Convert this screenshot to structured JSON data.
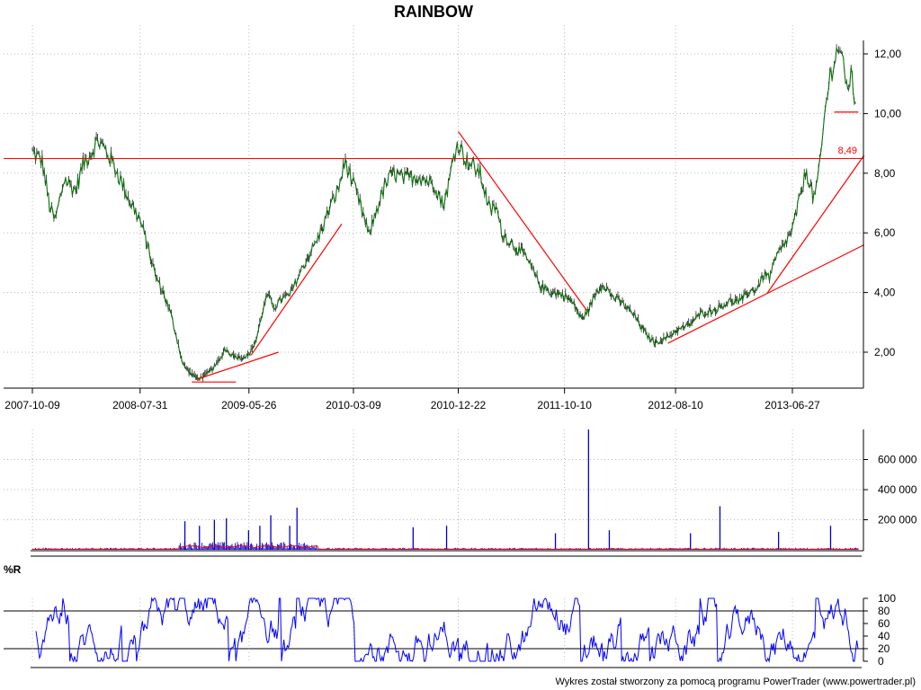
{
  "colors": {
    "price_line": "#0a6f0a",
    "price_bar": "#000000",
    "trend": "#ff0000",
    "volume": "#0000cc",
    "volume_avg": "#ff0000",
    "oscillator": "#0000ff",
    "grid": "#b8b8b8"
  },
  "chart_data": [
    {
      "type": "line",
      "title": "RAINBOW",
      "xlabel": "",
      "ylabel": "",
      "x_ticks": [
        "2007-10-09",
        "2008-07-31",
        "2009-05-26",
        "2010-03-09",
        "2010-12-22",
        "2011-10-10",
        "2012-08-10",
        "2013-06-27"
      ],
      "y_ticks": [
        "2,00",
        "4,00",
        "6,00",
        "8,00",
        "10,00",
        "12,00"
      ],
      "ylim": [
        0.9,
        12.9
      ],
      "grid": true,
      "series": [
        {
          "points": [
            [
              "2007-10-09",
              8.7
            ],
            [
              "2007-11-05",
              8.4
            ],
            [
              "2007-11-25",
              6.9
            ],
            [
              "2007-12-10",
              6.4
            ],
            [
              "2008-01-05",
              7.8
            ],
            [
              "2008-02-05",
              7.4
            ],
            [
              "2008-02-25",
              8.3
            ],
            [
              "2008-03-20",
              8.7
            ],
            [
              "2008-04-05",
              9.1
            ],
            [
              "2008-04-25",
              8.8
            ],
            [
              "2008-05-15",
              8.4
            ],
            [
              "2008-06-10",
              7.7
            ],
            [
              "2008-07-01",
              7.1
            ],
            [
              "2008-07-31",
              6.4
            ],
            [
              "2008-08-20",
              5.6
            ],
            [
              "2008-09-10",
              4.6
            ],
            [
              "2008-10-05",
              3.9
            ],
            [
              "2008-10-25",
              3.2
            ],
            [
              "2008-11-10",
              2.4
            ],
            [
              "2008-11-25",
              1.6
            ],
            [
              "2008-12-15",
              1.3
            ],
            [
              "2009-01-05",
              1.1
            ],
            [
              "2009-01-25",
              1.2
            ],
            [
              "2009-02-20",
              1.5
            ],
            [
              "2009-03-10",
              1.8
            ],
            [
              "2009-03-20",
              2.1
            ],
            [
              "2009-04-10",
              1.9
            ],
            [
              "2009-05-05",
              1.8
            ],
            [
              "2009-05-26",
              1.9
            ],
            [
              "2009-06-15",
              2.4
            ],
            [
              "2009-07-01",
              3.3
            ],
            [
              "2009-07-15",
              3.9
            ],
            [
              "2009-08-05",
              3.5
            ],
            [
              "2009-08-25",
              3.8
            ],
            [
              "2009-09-15",
              3.9
            ],
            [
              "2009-10-15",
              4.7
            ],
            [
              "2009-11-10",
              5.3
            ],
            [
              "2009-12-05",
              5.9
            ],
            [
              "2010-01-05",
              6.9
            ],
            [
              "2010-01-25",
              7.4
            ],
            [
              "2010-02-15",
              8.4
            ],
            [
              "2010-03-09",
              7.6
            ],
            [
              "2010-04-05",
              6.6
            ],
            [
              "2010-04-20",
              5.9
            ],
            [
              "2010-05-15",
              6.9
            ],
            [
              "2010-06-05",
              7.6
            ],
            [
              "2010-06-25",
              8.0
            ],
            [
              "2010-07-25",
              7.8
            ],
            [
              "2010-09-05",
              7.9
            ],
            [
              "2010-10-20",
              7.6
            ],
            [
              "2010-11-10",
              6.9
            ],
            [
              "2010-11-25",
              7.6
            ],
            [
              "2010-12-10",
              8.6
            ],
            [
              "2010-12-22",
              9.0
            ],
            [
              "2011-01-15",
              8.4
            ],
            [
              "2011-02-20",
              8.0
            ],
            [
              "2011-03-20",
              6.7
            ],
            [
              "2011-04-05",
              6.9
            ],
            [
              "2011-04-20",
              6.0
            ],
            [
              "2011-05-20",
              5.6
            ],
            [
              "2011-06-25",
              5.2
            ],
            [
              "2011-07-20",
              4.6
            ],
            [
              "2011-08-05",
              4.2
            ],
            [
              "2011-09-05",
              4.0
            ],
            [
              "2011-10-10",
              3.9
            ],
            [
              "2011-11-05",
              3.6
            ],
            [
              "2011-11-25",
              3.1
            ],
            [
              "2011-12-15",
              3.4
            ],
            [
              "2012-01-05",
              4.0
            ],
            [
              "2012-01-25",
              4.3
            ],
            [
              "2012-02-15",
              3.9
            ],
            [
              "2012-03-20",
              3.6
            ],
            [
              "2012-04-20",
              3.2
            ],
            [
              "2012-05-20",
              2.6
            ],
            [
              "2012-06-15",
              2.3
            ],
            [
              "2012-07-20",
              2.5
            ],
            [
              "2012-08-10",
              2.7
            ],
            [
              "2012-09-15",
              2.9
            ],
            [
              "2012-10-20",
              3.3
            ],
            [
              "2012-11-25",
              3.4
            ],
            [
              "2013-01-05",
              3.7
            ],
            [
              "2013-02-05",
              3.7
            ],
            [
              "2013-02-25",
              4.0
            ],
            [
              "2013-03-20",
              4.1
            ],
            [
              "2013-04-10",
              4.6
            ],
            [
              "2013-04-25",
              4.5
            ],
            [
              "2013-05-15",
              5.2
            ],
            [
              "2013-06-05",
              5.6
            ],
            [
              "2013-06-27",
              6.1
            ],
            [
              "2013-07-20",
              7.3
            ],
            [
              "2013-08-05",
              8.1
            ],
            [
              "2013-08-25",
              7.1
            ],
            [
              "2013-09-10",
              8.2
            ],
            [
              "2013-09-25",
              10.1
            ],
            [
              "2013-10-05",
              11.0
            ],
            [
              "2013-10-20",
              11.8
            ],
            [
              "2013-11-05",
              12.3
            ],
            [
              "2013-11-20",
              10.9
            ],
            [
              "2013-12-05",
              11.2
            ],
            [
              "2013-12-20",
              10.2
            ]
          ]
        }
      ],
      "annotations": [
        {
          "type": "hline",
          "y": 8.49,
          "label": "8,49"
        },
        {
          "type": "segment",
          "x1": "2008-12-20",
          "y1": 1.0,
          "x2": "2009-04-20",
          "y2": 1.0
        },
        {
          "type": "segment",
          "x1": "2009-01-05",
          "y1": 1.1,
          "x2": "2009-08-15",
          "y2": 2.0
        },
        {
          "type": "segment",
          "x1": "2009-06-01",
          "y1": 1.9,
          "x2": "2010-02-05",
          "y2": 6.3
        },
        {
          "type": "segment",
          "x1": "2010-12-22",
          "y1": 9.4,
          "x2": "2011-12-10",
          "y2": 3.4
        },
        {
          "type": "segment",
          "x1": "2012-07-20",
          "y1": 2.3,
          "x2": "2014-01-10",
          "y2": 5.6
        },
        {
          "type": "segment",
          "x1": "2013-04-20",
          "y1": 4.0,
          "x2": "2014-01-10",
          "y2": 8.6
        },
        {
          "type": "segment",
          "x1": "2013-10-20",
          "y1": 10.05,
          "x2": "2013-12-25",
          "y2": 10.05
        }
      ]
    },
    {
      "type": "bar",
      "title": "",
      "y_ticks": [
        "200 000",
        "400 000",
        "600 000"
      ],
      "ylim": [
        0,
        800000
      ],
      "grid": true,
      "spikes": [
        [
          "2008-12-01",
          190000
        ],
        [
          "2009-01-10",
          160000
        ],
        [
          "2009-02-20",
          200000
        ],
        [
          "2009-03-25",
          210000
        ],
        [
          "2009-05-25",
          130000
        ],
        [
          "2009-06-25",
          160000
        ],
        [
          "2009-07-25",
          230000
        ],
        [
          "2009-09-15",
          160000
        ],
        [
          "2009-10-05",
          280000
        ],
        [
          "2010-08-20",
          150000
        ],
        [
          "2010-11-20",
          160000
        ],
        [
          "2011-09-15",
          110000
        ],
        [
          "2011-12-15",
          800000
        ],
        [
          "2012-02-10",
          130000
        ],
        [
          "2012-09-20",
          110000
        ],
        [
          "2012-12-10",
          290000
        ],
        [
          "2013-05-20",
          120000
        ],
        [
          "2013-10-10",
          160000
        ]
      ]
    },
    {
      "type": "line",
      "title": "%R",
      "y_ticks": [
        "0",
        "20",
        "40",
        "60",
        "80",
        "100"
      ],
      "ylim": [
        0,
        100
      ],
      "reference_lines": [
        20,
        80
      ]
    }
  ],
  "footer": {
    "credit": "Wykres został stworzony za pomocą programu PowerTrader (www.powertrader.pl)"
  }
}
